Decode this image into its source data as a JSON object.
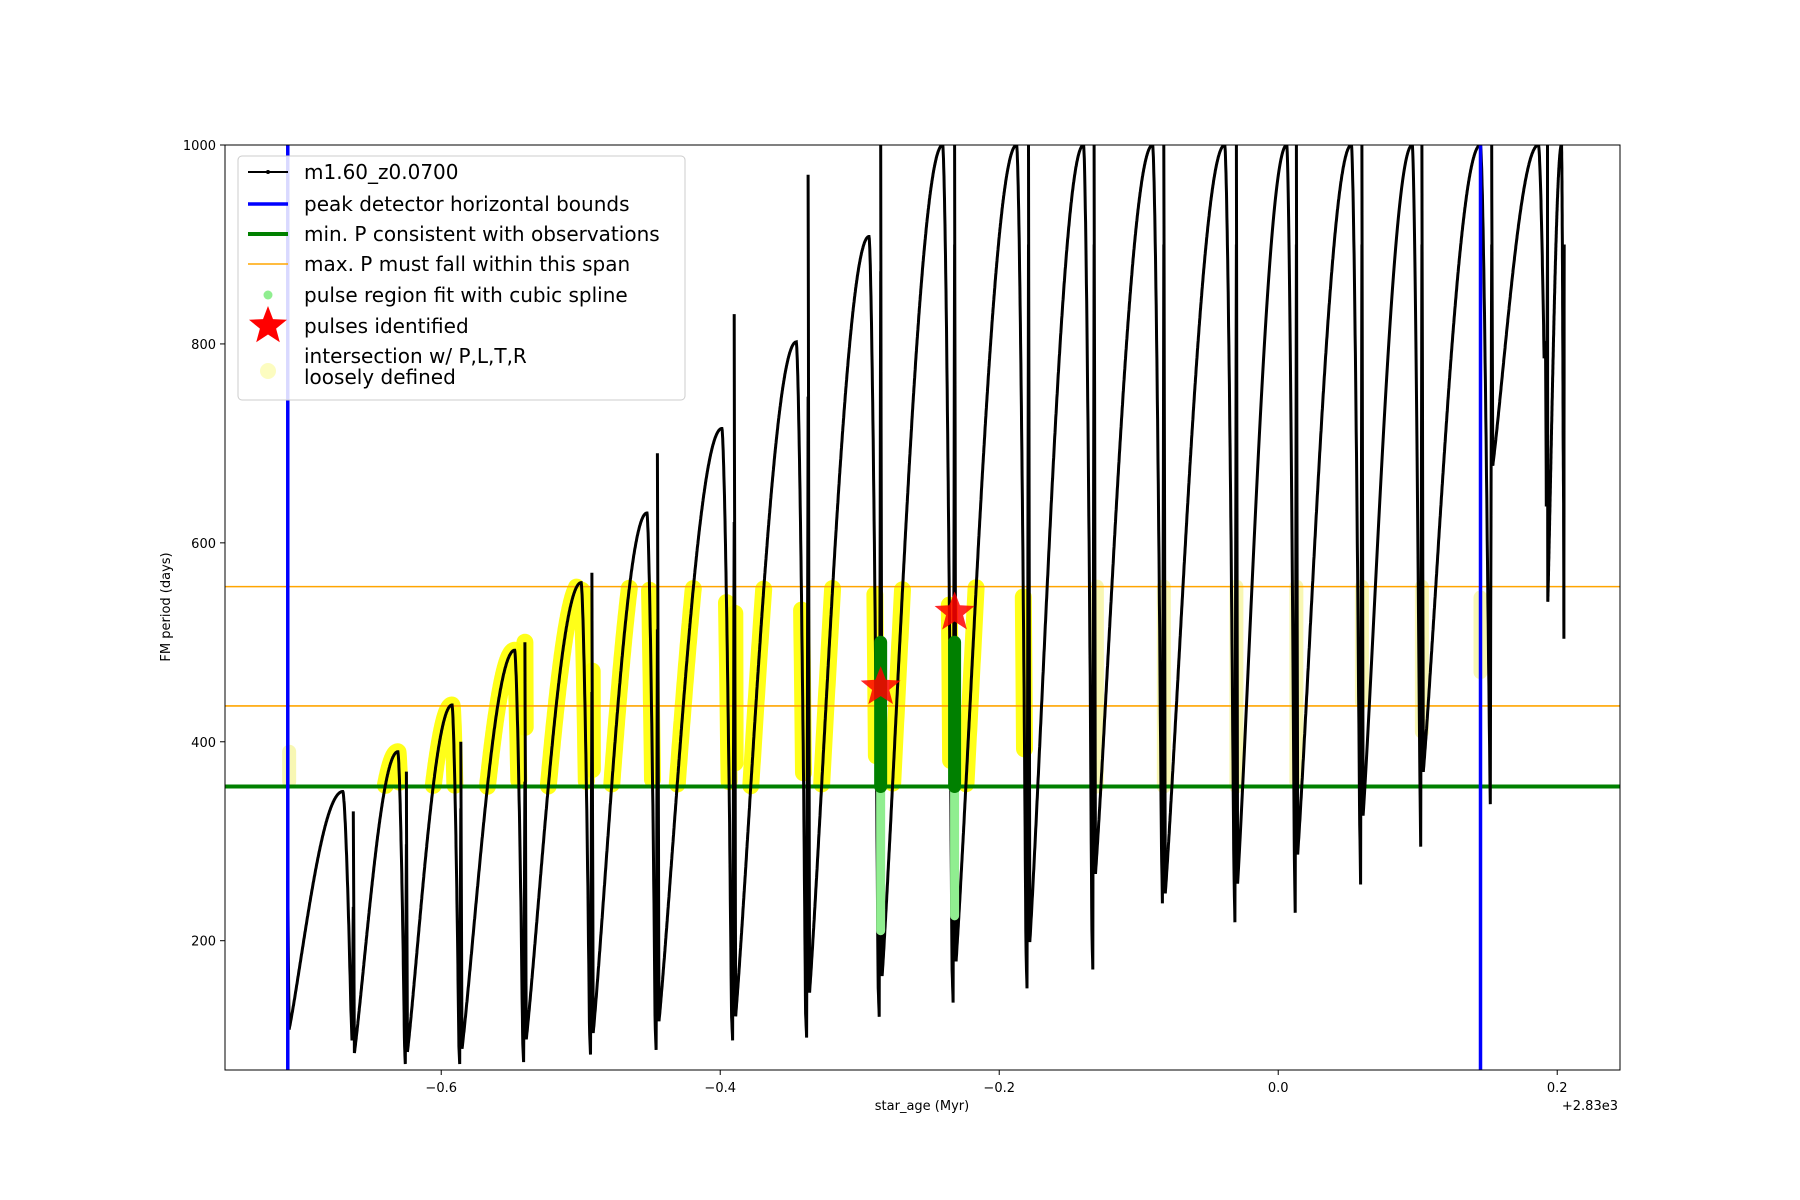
{
  "chart_data": {
    "type": "line",
    "xlabel": "star_age (Myr)",
    "ylabel": "FM period (days)",
    "x_offset_label": "+2.83e3",
    "xlim": [
      2829.245,
      2830.245
    ],
    "ylim": [
      70,
      1000
    ],
    "xticks": [
      {
        "value": 2829.4,
        "label": "−0.6"
      },
      {
        "value": 2829.6,
        "label": "−0.4"
      },
      {
        "value": 2829.8,
        "label": "−0.2"
      },
      {
        "value": 2830.0,
        "label": "0.0"
      },
      {
        "value": 2830.2,
        "label": "0.2"
      }
    ],
    "yticks": [
      {
        "value": 200,
        "label": "200"
      },
      {
        "value": 400,
        "label": "400"
      },
      {
        "value": 600,
        "label": "600"
      },
      {
        "value": 800,
        "label": "800"
      },
      {
        "value": 1000,
        "label": "1000"
      }
    ],
    "legend": {
      "placement": "upper-left",
      "entries": [
        {
          "label": "m1.60_z0.0700",
          "style": "black-line-dots"
        },
        {
          "label": "peak detector horizontal bounds",
          "style": "blue-line"
        },
        {
          "label": "min. P consistent with observations",
          "style": "green-line"
        },
        {
          "label": "max. P must fall within this span",
          "style": "orange-line"
        },
        {
          "label": "pulse region fit with cubic spline",
          "style": "lightgreen-dot"
        },
        {
          "label": "pulses identified",
          "style": "red-star"
        },
        {
          "label": "intersection w/ P,L,T,R",
          "label2": "loosely defined",
          "style": "yellow-circle"
        }
      ]
    },
    "series": [
      {
        "name": "m1.60_z0.0700",
        "color": "#000000",
        "pulses": [
          {
            "t0": 2829.29,
            "t1": 2829.337,
            "p0": 260,
            "pmin": 105,
            "pmax": 350
          },
          {
            "t0": 2829.337,
            "t1": 2829.375,
            "p0": 330,
            "pmin": 80,
            "pmax": 390
          },
          {
            "t0": 2829.375,
            "t1": 2829.414,
            "p0": 370,
            "pmin": 80,
            "pmax": 437
          },
          {
            "t0": 2829.414,
            "t1": 2829.46,
            "p0": 400,
            "pmin": 82,
            "pmax": 492
          },
          {
            "t0": 2829.46,
            "t1": 2829.508,
            "p0": 500,
            "pmin": 90,
            "pmax": 560
          },
          {
            "t0": 2829.508,
            "t1": 2829.555,
            "p0": 570,
            "pmin": 95,
            "pmax": 630
          },
          {
            "t0": 2829.555,
            "t1": 2829.61,
            "p0": 690,
            "pmin": 105,
            "pmax": 715
          },
          {
            "t0": 2829.61,
            "t1": 2829.663,
            "p0": 830,
            "pmin": 108,
            "pmax": 802
          },
          {
            "t0": 2829.663,
            "t1": 2829.715,
            "p0": 970,
            "pmin": 130,
            "pmax": 908
          },
          {
            "t0": 2829.715,
            "t1": 2829.768,
            "p0": 1000,
            "pmin": 145,
            "pmax": 1000
          },
          {
            "t0": 2829.768,
            "t1": 2829.821,
            "p0": 1000,
            "pmin": 160,
            "pmax": 1000
          },
          {
            "t0": 2829.821,
            "t1": 2829.868,
            "p0": 1000,
            "pmin": 180,
            "pmax": 1000
          },
          {
            "t0": 2829.868,
            "t1": 2829.918,
            "p0": 1000,
            "pmin": 250,
            "pmax": 1000
          },
          {
            "t0": 2829.918,
            "t1": 2829.97,
            "p0": 1000,
            "pmin": 230,
            "pmax": 1000
          },
          {
            "t0": 2829.97,
            "t1": 2830.013,
            "p0": 1000,
            "pmin": 240,
            "pmax": 1000
          },
          {
            "t0": 2830.013,
            "t1": 2830.06,
            "p0": 1000,
            "pmin": 270,
            "pmax": 1000
          },
          {
            "t0": 2830.06,
            "t1": 2830.103,
            "p0": 1000,
            "pmin": 310,
            "pmax": 1000
          },
          {
            "t0": 2830.103,
            "t1": 2830.153,
            "p0": 1000,
            "pmin": 355,
            "pmax": 1000
          },
          {
            "t0": 2830.153,
            "t1": 2830.193,
            "p0": 1000,
            "pmin": 670,
            "pmax": 1000
          },
          {
            "t0": 2830.193,
            "t1": 2830.205,
            "p0": 1000,
            "pmin": 530,
            "pmax": 1000
          }
        ]
      },
      {
        "name": "peak detector horizontal bounds",
        "color": "#0000ff",
        "x": [
          2829.29,
          2830.145
        ]
      },
      {
        "name": "min. P consistent with observations",
        "color": "#008000",
        "y": 355
      },
      {
        "name": "max. P must fall within this span",
        "color": "#ffa500",
        "y": [
          436,
          556
        ]
      },
      {
        "name": "pulse region fit with cubic spline",
        "color": "#90ee90",
        "dark_color": "#008000",
        "segments": [
          {
            "x": 2829.715,
            "ymin": 210,
            "ymax": 500,
            "dark_from": 355
          },
          {
            "x": 2829.768,
            "ymin": 225,
            "ymax": 500,
            "dark_from": 355
          }
        ]
      },
      {
        "name": "pulses identified",
        "color": "#ff0000",
        "points": [
          {
            "x": 2829.715,
            "y": 455
          },
          {
            "x": 2829.768,
            "y": 530
          }
        ]
      },
      {
        "name": "intersection w/ P,L,T,R loosely defined",
        "color": "#ffff00",
        "ybounds": [
          355,
          556
        ],
        "faint_markers": [
          {
            "x": 2829.291,
            "ymin": 360,
            "ymax": 390
          },
          {
            "x": 2829.87,
            "ymin": 355,
            "ymax": 556
          },
          {
            "x": 2829.918,
            "ymin": 355,
            "ymax": 556
          },
          {
            "x": 2829.97,
            "ymin": 355,
            "ymax": 556
          },
          {
            "x": 2830.013,
            "ymin": 360,
            "ymax": 556
          },
          {
            "x": 2830.06,
            "ymin": 440,
            "ymax": 556
          },
          {
            "x": 2830.103,
            "ymin": 410,
            "ymax": 556
          },
          {
            "x": 2830.145,
            "ymin": 470,
            "ymax": 545
          }
        ]
      }
    ]
  }
}
